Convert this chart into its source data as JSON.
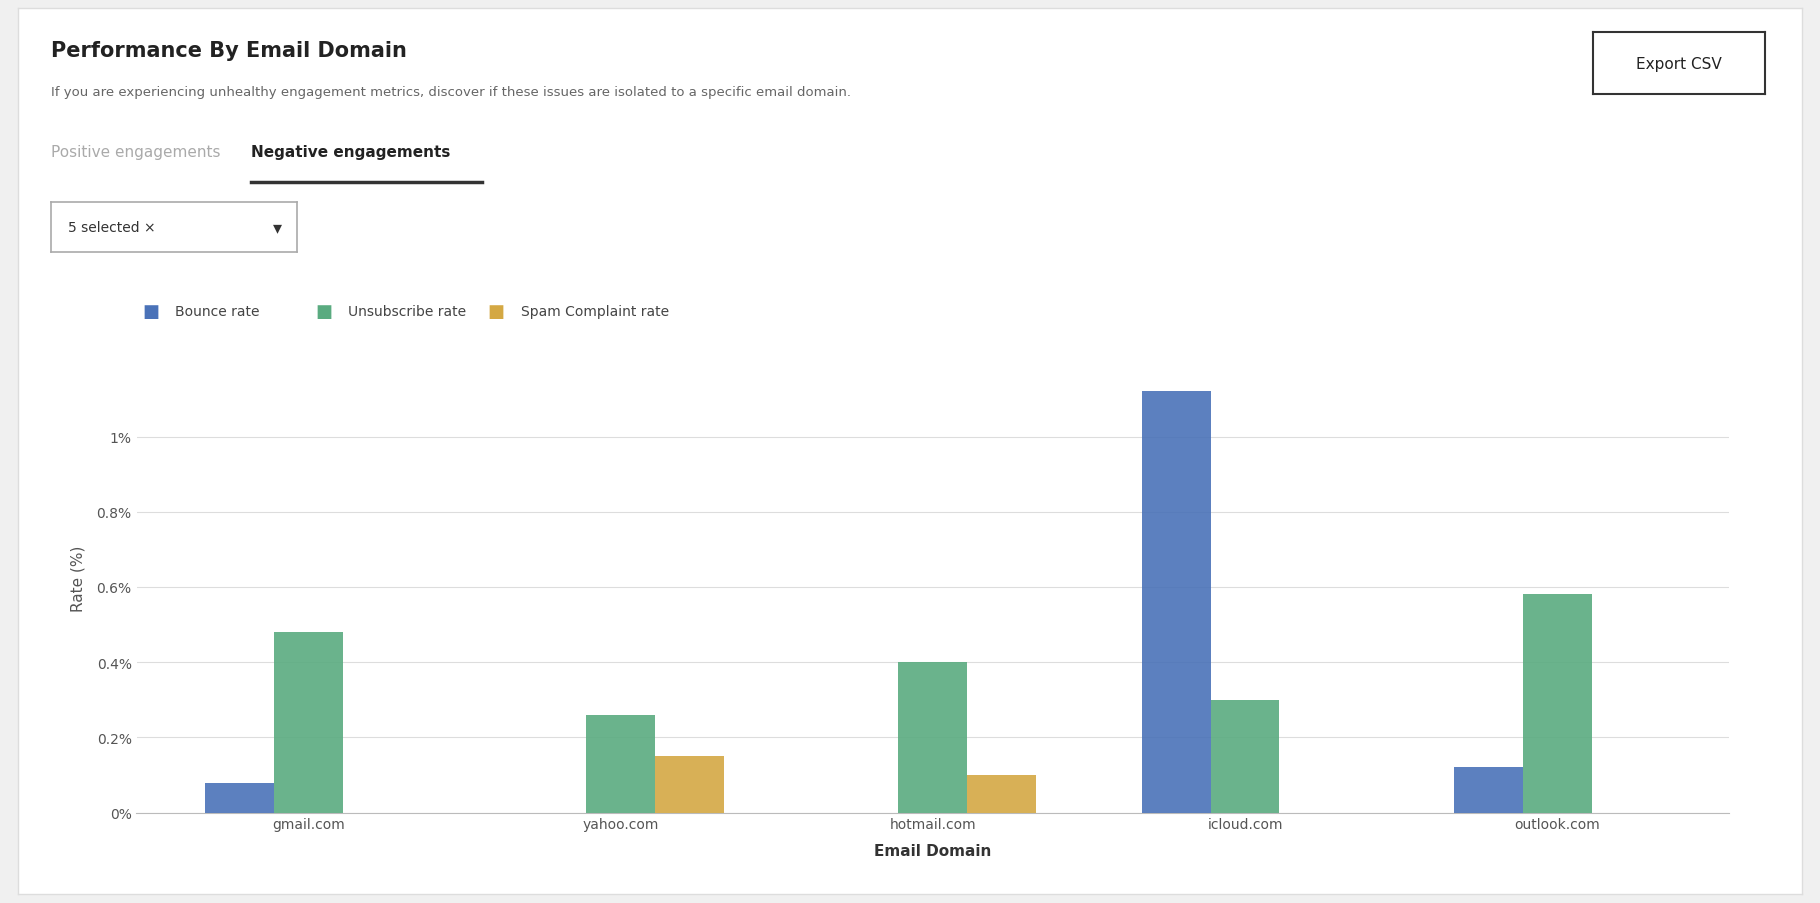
{
  "title": "Performance By Email Domain",
  "subtitle": "If you are experiencing unhealthy engagement metrics, discover if these issues are isolated to a specific email domain.",
  "tab_inactive": "Positive engagements",
  "tab_active": "Negative engagements",
  "dropdown_label": "5 selected ×",
  "xlabel": "Email Domain",
  "ylabel": "Rate (%)",
  "categories": [
    "gmail.com",
    "yahoo.com",
    "hotmail.com",
    "icloud.com",
    "outlook.com"
  ],
  "series": [
    {
      "name": "Bounce rate",
      "color": "#4a72b8",
      "values": [
        0.08,
        0.0,
        0.0,
        1.12,
        0.12
      ]
    },
    {
      "name": "Unsubscribe rate",
      "color": "#5aab80",
      "values": [
        0.48,
        0.26,
        0.4,
        0.3,
        0.58
      ]
    },
    {
      "name": "Spam Complaint rate",
      "color": "#d4a843",
      "values": [
        0.0,
        0.15,
        0.1,
        0.0,
        0.0
      ]
    }
  ],
  "yticks": [
    0.0,
    0.2,
    0.4,
    0.6,
    0.8,
    1.0
  ],
  "ytick_labels": [
    "0%",
    "0.2%",
    "0.4%",
    "0.6%",
    "0.8%",
    "1%"
  ],
  "ylim": [
    0,
    1.25
  ],
  "background_color": "#ffffff",
  "plot_bg_color": "#ffffff",
  "outer_bg_color": "#f0f0f0",
  "grid_color": "#dddddd",
  "bar_width": 0.22,
  "export_btn_text": "Export CSV",
  "title_fontsize": 15,
  "subtitle_fontsize": 9.5,
  "axis_label_fontsize": 11,
  "tick_fontsize": 10,
  "legend_fontsize": 10
}
